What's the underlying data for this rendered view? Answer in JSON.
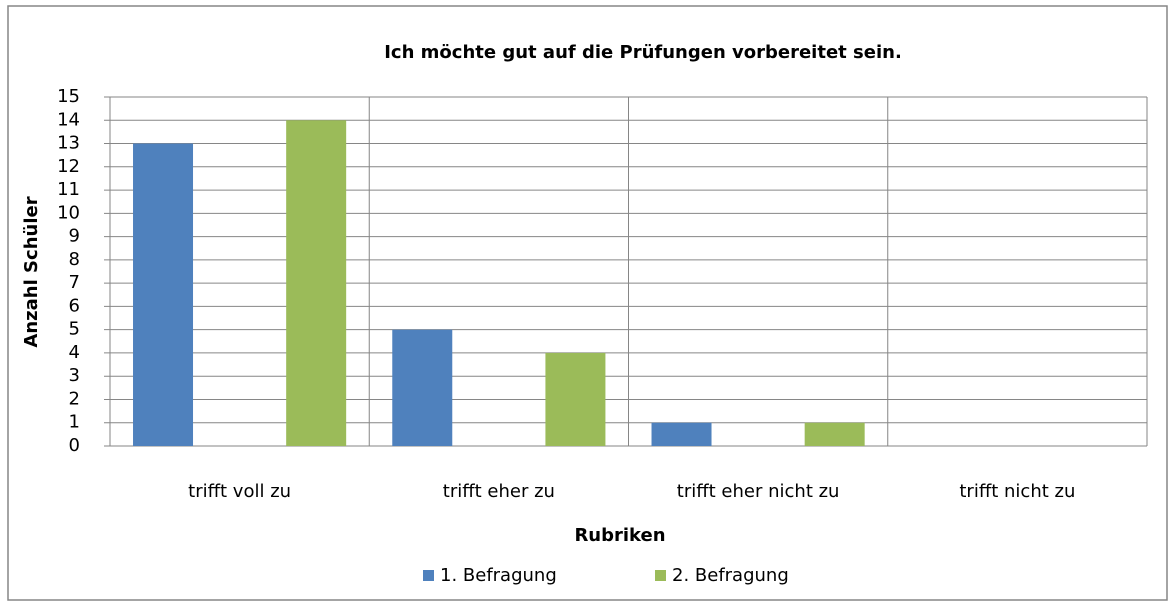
{
  "chart_data": {
    "type": "bar",
    "title": "Ich möchte gut auf die Prüfungen vorbereitet sein.",
    "x_label": "Rubriken",
    "y_label": "Anzahl Schüler",
    "categories": [
      "trifft voll zu",
      "trifft eher zu",
      "trifft eher nicht zu",
      "trifft nicht zu"
    ],
    "series": [
      {
        "name": "1. Befragung",
        "color": "#4f81bd",
        "values": [
          13,
          5,
          1,
          0
        ]
      },
      {
        "name": "2. Befragung",
        "color": "#9bbb59",
        "values": [
          14,
          4,
          1,
          0
        ]
      }
    ],
    "ylim": [
      0,
      15
    ],
    "yticks": [
      0,
      1,
      2,
      3,
      4,
      5,
      6,
      7,
      8,
      9,
      10,
      11,
      12,
      13,
      14,
      15
    ],
    "grid": true,
    "legend": "bottom"
  }
}
